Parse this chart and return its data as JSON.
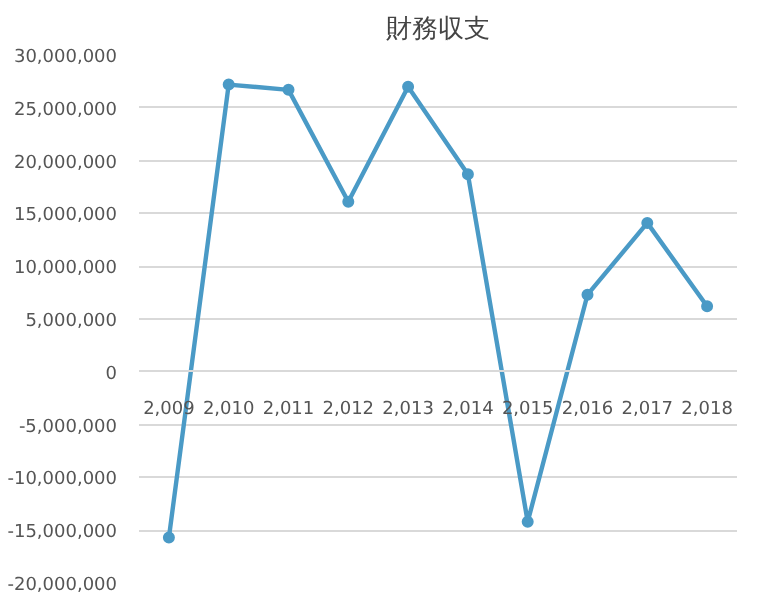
{
  "chart_data": {
    "type": "line",
    "title": "財務収支",
    "categories": [
      "2,009",
      "2,010",
      "2,011",
      "2,012",
      "2,013",
      "2,014",
      "2,015",
      "2,016",
      "2,017",
      "2,018"
    ],
    "series": [
      {
        "color": "#4a9ac6",
        "values": [
          -15700000,
          27200000,
          26700000,
          16100000,
          27000000,
          18700000,
          -14200000,
          7300000,
          14100000,
          6200000
        ]
      }
    ],
    "ylim": [
      -20000000,
      30000000
    ],
    "yticks": [
      {
        "value": -20000000,
        "label": "-20,000,000"
      },
      {
        "value": -15000000,
        "label": "-15,000,000"
      },
      {
        "value": -10000000,
        "label": "-10,000,000"
      },
      {
        "value": -5000000,
        "label": "-5,000,000"
      },
      0,
      {
        "value": 5000000,
        "label": "5,000,000"
      },
      {
        "value": 10000000,
        "label": "10,000,000"
      },
      {
        "value": 15000000,
        "label": "15,000,000"
      },
      {
        "value": 20000000,
        "label": "20,000,000"
      },
      {
        "value": 25000000,
        "label": "25,000,000"
      },
      {
        "value": 30000000,
        "label": "30,000,000"
      }
    ],
    "grid": "y",
    "marker": "circle",
    "line_style": "solid"
  }
}
